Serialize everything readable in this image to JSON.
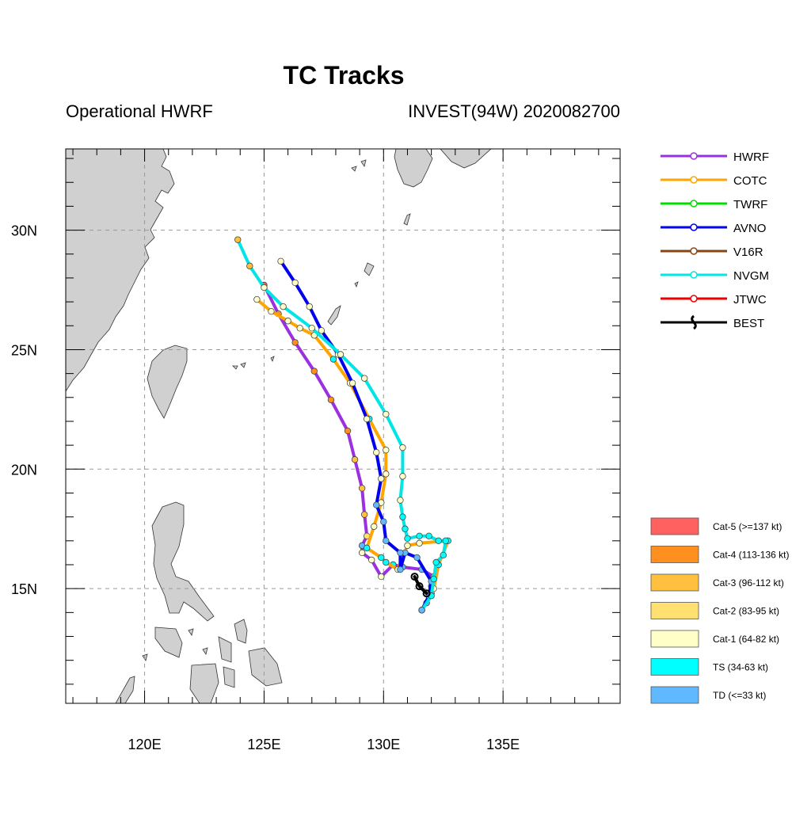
{
  "title": "TC Tracks",
  "subtitle_left": "Operational HWRF",
  "subtitle_right": "INVEST(94W) 2020082700",
  "map": {
    "lon_range": [
      116.7,
      139.9
    ],
    "lat_range": [
      10.2,
      33.4
    ],
    "lon_ticks": [
      {
        "value": 120,
        "label": "120E"
      },
      {
        "value": 125,
        "label": "125E"
      },
      {
        "value": 130,
        "label": "130E"
      },
      {
        "value": 135,
        "label": "135E"
      }
    ],
    "lat_ticks": [
      {
        "value": 15,
        "label": "15N"
      },
      {
        "value": 20,
        "label": "20N"
      },
      {
        "value": 25,
        "label": "25N"
      },
      {
        "value": 30,
        "label": "30N"
      }
    ],
    "grid": true,
    "land_color": "#d0d0d0"
  },
  "legend": {
    "placement": "top-right",
    "models": [
      {
        "name": "HWRF",
        "color": "#9b30e0"
      },
      {
        "name": "COTC",
        "color": "#ffa500"
      },
      {
        "name": "TWRF",
        "color": "#00e000"
      },
      {
        "name": "AVNO",
        "color": "#0000ee"
      },
      {
        "name": "V16R",
        "color": "#8b4513"
      },
      {
        "name": "NVGM",
        "color": "#00e5e5"
      },
      {
        "name": "JTWC",
        "color": "#ee0000"
      },
      {
        "name": "BEST",
        "color": "#000000"
      }
    ]
  },
  "intensity_legend": {
    "placement": "bottom-right",
    "categories": [
      {
        "label": "Cat-5 (>=137 kt)",
        "color": "#ff6060"
      },
      {
        "label": "Cat-4 (113-136 kt)",
        "color": "#ff9020"
      },
      {
        "label": "Cat-3 (96-112 kt)",
        "color": "#ffc040"
      },
      {
        "label": "Cat-2 (83-95 kt)",
        "color": "#ffe070"
      },
      {
        "label": "Cat-1 (64-82 kt)",
        "color": "#ffffc8"
      },
      {
        "label": "TS (34-63 kt)",
        "color": "#00ffff"
      },
      {
        "label": "TD (<=33 kt)",
        "color": "#60b8ff"
      }
    ]
  },
  "chart_data": {
    "type": "scatter",
    "title": "TC Tracks",
    "xlabel": "",
    "ylabel": "",
    "xlim": [
      116.7,
      139.9
    ],
    "ylim": [
      10.2,
      33.4
    ],
    "grid": true,
    "series": [
      {
        "name": "HWRF",
        "color": "#9b30e0",
        "points": [
          [
            131.6,
            14.1,
            "TD"
          ],
          [
            131.8,
            14.4,
            "TD"
          ],
          [
            132.0,
            14.8,
            "TD"
          ],
          [
            132.0,
            15.1,
            "TD"
          ],
          [
            132.1,
            15.5,
            "TD"
          ],
          [
            131.6,
            15.8,
            "TD"
          ],
          [
            130.8,
            15.9,
            "TD"
          ],
          [
            130.4,
            16.0,
            "TS"
          ],
          [
            129.9,
            15.5,
            "C1"
          ],
          [
            129.5,
            16.2,
            "C1"
          ],
          [
            129.1,
            16.5,
            "C1"
          ],
          [
            129.1,
            16.8,
            "TD"
          ],
          [
            129.3,
            17.2,
            "C2"
          ],
          [
            129.2,
            18.1,
            "C3"
          ],
          [
            129.1,
            19.2,
            "C3"
          ],
          [
            128.8,
            20.4,
            "C3"
          ],
          [
            128.5,
            21.6,
            "C4"
          ],
          [
            127.8,
            22.9,
            "C4"
          ],
          [
            127.1,
            24.1,
            "C4"
          ],
          [
            126.3,
            25.3,
            "C4"
          ],
          [
            125.6,
            26.5,
            "C4"
          ],
          [
            125.0,
            27.7,
            "C5"
          ]
        ]
      },
      {
        "name": "COTC",
        "color": "#ffa500",
        "points": [
          [
            131.6,
            14.1,
            "TD"
          ],
          [
            132.1,
            15.0,
            "C1"
          ],
          [
            132.3,
            16.0,
            "TS"
          ],
          [
            132.7,
            17.0,
            "TS"
          ],
          [
            131.5,
            16.9,
            "C1"
          ],
          [
            131.0,
            16.8,
            "C1"
          ],
          [
            130.6,
            15.8,
            "C1"
          ],
          [
            130.1,
            16.1,
            "TS"
          ],
          [
            129.9,
            16.3,
            "TS"
          ],
          [
            129.3,
            16.7,
            "TS"
          ],
          [
            129.6,
            17.6,
            "C1"
          ],
          [
            129.9,
            18.6,
            "C1"
          ],
          [
            130.1,
            19.8,
            "C1"
          ],
          [
            130.1,
            20.8,
            "C1"
          ],
          [
            129.4,
            22.1,
            "TS"
          ],
          [
            128.6,
            23.6,
            "C1"
          ],
          [
            127.9,
            24.6,
            "TS"
          ],
          [
            127.1,
            25.6,
            "C1"
          ],
          [
            126.5,
            25.9,
            "C1"
          ],
          [
            126.0,
            26.2,
            "C1"
          ],
          [
            125.3,
            26.6,
            "C1"
          ],
          [
            124.7,
            27.1,
            "C1"
          ]
        ]
      },
      {
        "name": "AVNO",
        "color": "#0000ee",
        "points": [
          [
            131.6,
            14.1,
            "TD"
          ],
          [
            131.9,
            14.7,
            "TD"
          ],
          [
            132.0,
            15.3,
            "TD"
          ],
          [
            131.4,
            16.3,
            "TD"
          ],
          [
            130.9,
            16.5,
            "TD"
          ],
          [
            130.7,
            15.8,
            "TD"
          ],
          [
            130.7,
            16.5,
            "TD"
          ],
          [
            130.1,
            17.0,
            "TD"
          ],
          [
            130.0,
            17.8,
            "TD"
          ],
          [
            129.7,
            18.5,
            "TD"
          ],
          [
            129.9,
            19.6,
            "C1"
          ],
          [
            129.7,
            20.7,
            "C1"
          ],
          [
            129.3,
            22.1,
            "C1"
          ],
          [
            128.7,
            23.6,
            "C1"
          ],
          [
            128.1,
            24.8,
            "C1"
          ],
          [
            127.4,
            25.8,
            "C1"
          ],
          [
            126.9,
            26.8,
            "C1"
          ],
          [
            126.3,
            27.8,
            "C1"
          ],
          [
            125.7,
            28.7,
            "C1"
          ]
        ]
      },
      {
        "name": "NVGM",
        "color": "#00e5e5",
        "points": [
          [
            131.6,
            14.1,
            "TD"
          ],
          [
            132.0,
            14.7,
            "TS"
          ],
          [
            132.1,
            15.4,
            "TS"
          ],
          [
            132.2,
            16.1,
            "TS"
          ],
          [
            132.5,
            16.4,
            "TS"
          ],
          [
            132.6,
            17.0,
            "TS"
          ],
          [
            132.3,
            17.0,
            "TS"
          ],
          [
            131.9,
            17.2,
            "TS"
          ],
          [
            131.5,
            17.2,
            "TS"
          ],
          [
            131.0,
            17.1,
            "TS"
          ],
          [
            130.9,
            17.5,
            "TS"
          ],
          [
            130.8,
            18.0,
            "TS"
          ],
          [
            130.7,
            18.7,
            "C1"
          ],
          [
            130.8,
            19.7,
            "C1"
          ],
          [
            130.8,
            20.9,
            "C1"
          ],
          [
            130.1,
            22.3,
            "C1"
          ],
          [
            129.2,
            23.8,
            "C1"
          ],
          [
            128.2,
            24.8,
            "C1"
          ],
          [
            127.0,
            25.9,
            "C1"
          ],
          [
            125.8,
            26.8,
            "C1"
          ],
          [
            125.0,
            27.6,
            "C1"
          ],
          [
            124.4,
            28.5,
            "C3"
          ],
          [
            123.9,
            29.6,
            "C3"
          ]
        ]
      },
      {
        "name": "BEST",
        "color": "#000000",
        "points": [
          [
            131.3,
            15.5,
            "TD"
          ],
          [
            131.5,
            15.1,
            "TD"
          ],
          [
            131.8,
            14.8,
            "TD"
          ]
        ]
      }
    ]
  }
}
